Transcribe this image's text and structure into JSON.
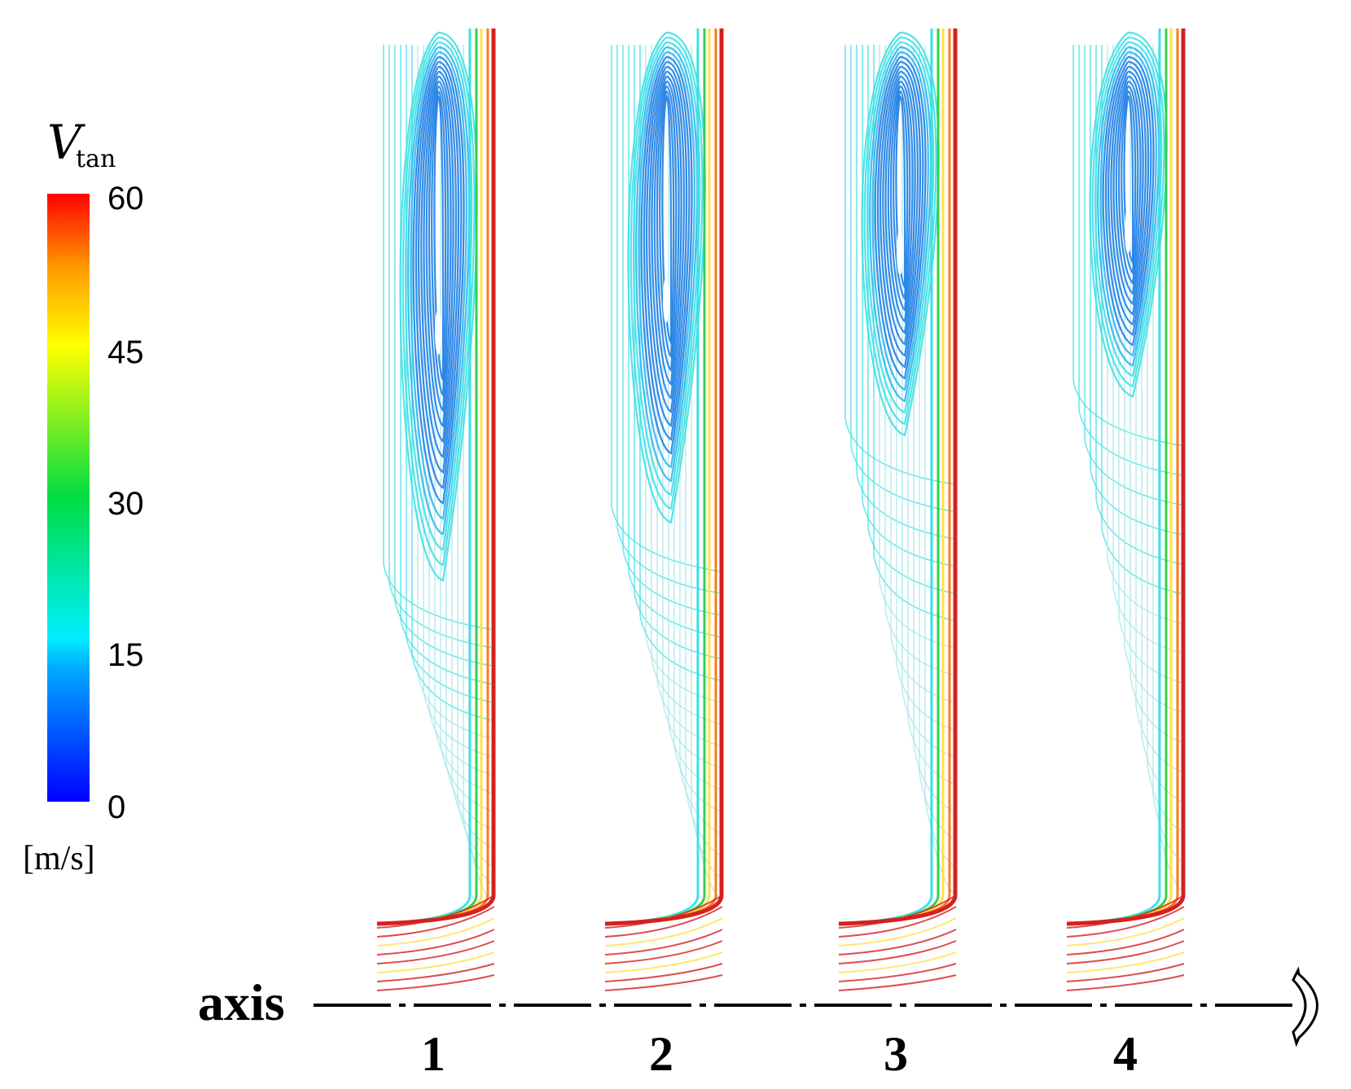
{
  "colorbar": {
    "symbol": "V",
    "subscript": "tan",
    "unit": "[m/s]",
    "ticks": [
      "0",
      "15",
      "30",
      "45",
      "60"
    ],
    "min": 0,
    "max": 60,
    "colors": [
      "#0000ff",
      "#00ccff",
      "#00ff66",
      "#ffff00",
      "#ff8800",
      "#ff0000"
    ]
  },
  "axis": {
    "label": "axis"
  },
  "panels": [
    {
      "number": "1",
      "vortex_bottom_fraction": 0.57
    },
    {
      "number": "2",
      "vortex_bottom_fraction": 0.51
    },
    {
      "number": "3",
      "vortex_bottom_fraction": 0.42
    },
    {
      "number": "4",
      "vortex_bottom_fraction": 0.38
    }
  ],
  "palette": {
    "vortex_core": "#1f7fe6",
    "outer_flow": "#3fe0e6",
    "near_wall": "#d42020",
    "transition": "#ffe14a",
    "green_band": "#33d04a"
  }
}
